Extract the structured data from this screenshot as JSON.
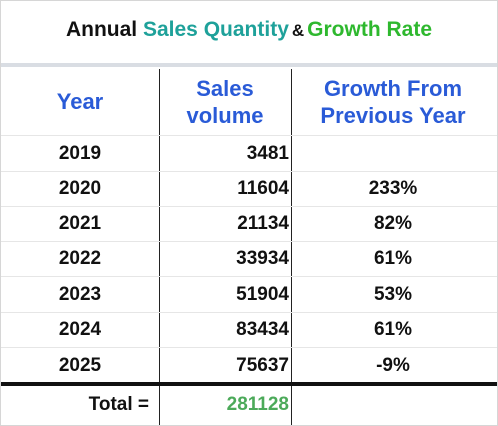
{
  "title": {
    "part1": "Annual ",
    "part2": "Sales Quantity",
    "amp": "&",
    "part3": "Growth Rate"
  },
  "colors": {
    "header_blue": "#2a5bd7",
    "teal": "#1ea19a",
    "green": "#2eb82e",
    "total_green": "#4caa5a"
  },
  "table": {
    "headers": {
      "year": "Year",
      "sales_line1": "Sales",
      "sales_line2": "volume",
      "growth_line1": "Growth From",
      "growth_line2": "Previous Year"
    },
    "rows": [
      {
        "year": "2019",
        "sales": "3481",
        "growth": ""
      },
      {
        "year": "2020",
        "sales": "11604",
        "growth": "233%"
      },
      {
        "year": "2021",
        "sales": "21134",
        "growth": "82%"
      },
      {
        "year": "2022",
        "sales": "33934",
        "growth": "61%"
      },
      {
        "year": "2023",
        "sales": "51904",
        "growth": "53%"
      },
      {
        "year": "2024",
        "sales": "83434",
        "growth": "61%"
      },
      {
        "year": "2025",
        "sales": "75637",
        "growth": "-9%"
      }
    ],
    "total_label": "Total =",
    "total_value": "281128"
  }
}
